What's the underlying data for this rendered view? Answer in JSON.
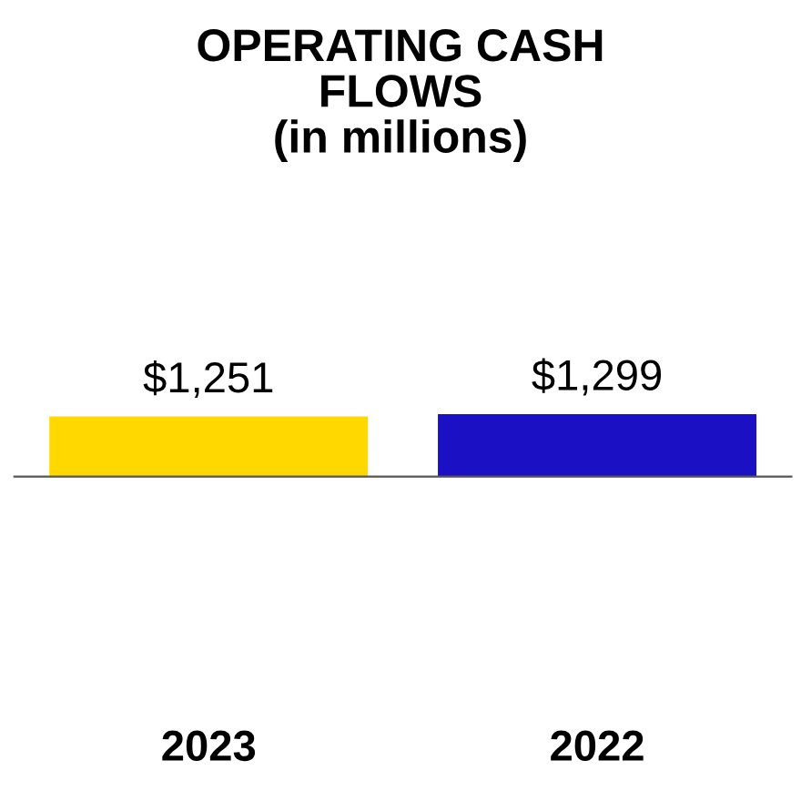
{
  "chart_data": {
    "type": "bar",
    "title": "OPERATING CASH\nFLOWS\n(in millions)",
    "categories": [
      "2023",
      "2022"
    ],
    "values": [
      1251,
      1299
    ],
    "colors": [
      "#ffd800",
      "#1c10c4"
    ],
    "value_labels": [
      "$1,251",
      "$1,299"
    ],
    "tick_labels": "x",
    "grid": false,
    "legend": false
  }
}
